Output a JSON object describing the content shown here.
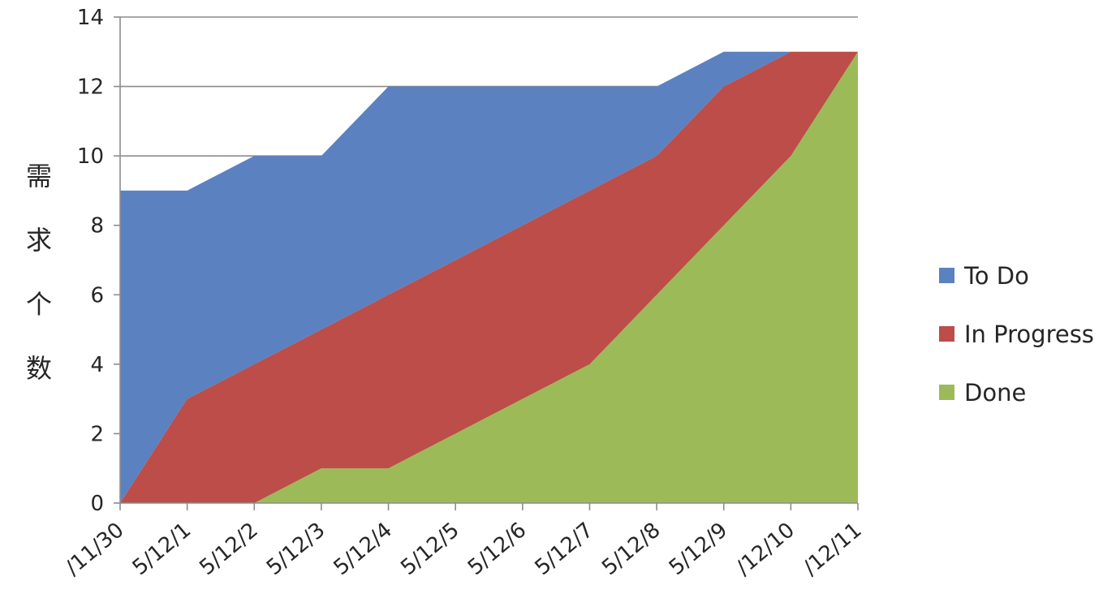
{
  "chart_data": {
    "type": "area",
    "stacked": true,
    "categories": [
      "/11/30",
      "5/12/1",
      "5/12/2",
      "5/12/3",
      "5/12/4",
      "5/12/5",
      "5/12/6",
      "5/12/7",
      "5/12/8",
      "5/12/9",
      "/12/10",
      "/12/11"
    ],
    "series": [
      {
        "name": "To Do",
        "color": "#5B81C0",
        "values": [
          9,
          6,
          6,
          5,
          6,
          5,
          4,
          3,
          2,
          1,
          0,
          0
        ]
      },
      {
        "name": "In Progress",
        "color": "#BC4D48",
        "values": [
          0,
          3,
          4,
          4,
          5,
          5,
          5,
          5,
          4,
          4,
          3,
          0
        ]
      },
      {
        "name": "Done",
        "color": "#9CBB58",
        "values": [
          0,
          0,
          0,
          1,
          1,
          2,
          3,
          4,
          6,
          8,
          10,
          13
        ]
      }
    ],
    "ylabel": "需求个数",
    "xlabel": "",
    "title": "",
    "ylim": [
      0,
      14
    ],
    "yticks": [
      0,
      2,
      4,
      6,
      8,
      10,
      12,
      14
    ],
    "grid": true,
    "legend_position": "right"
  }
}
